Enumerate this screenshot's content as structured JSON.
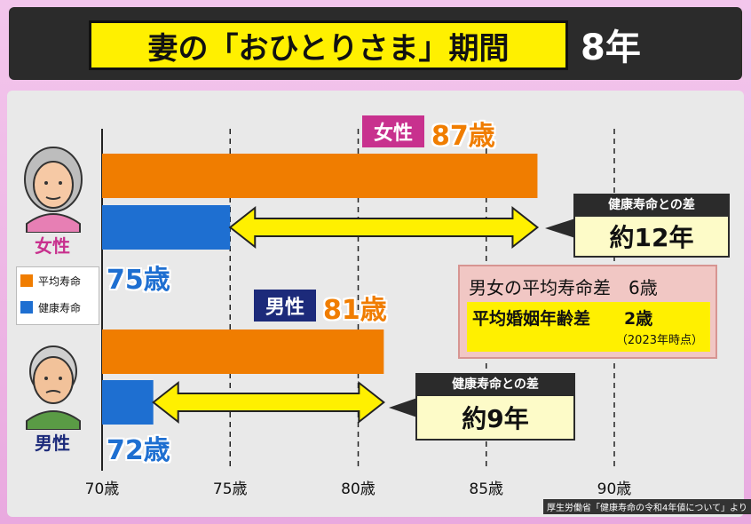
{
  "title": {
    "main": "妻の「おひとりさま」期間",
    "years": "8年"
  },
  "chart_data": {
    "type": "bar",
    "orientation": "horizontal",
    "x_range": [
      70,
      90
    ],
    "x_ticks": [
      "70歳",
      "75歳",
      "80歳",
      "85歳",
      "90歳"
    ],
    "categories": [
      "女性",
      "男性"
    ],
    "series": [
      {
        "name": "平均寿命",
        "values": [
          87,
          81
        ],
        "color": "#f07d00"
      },
      {
        "name": "健康寿命",
        "values": [
          75,
          72
        ],
        "color": "#1e6fd1"
      }
    ],
    "grid": "vertical dashed at 75, 80, 85, 90",
    "legend_position": "left"
  },
  "female": {
    "label": "女性",
    "badge": "女性",
    "avg": "87歳",
    "healthy": "75歳"
  },
  "male": {
    "label": "男性",
    "badge": "男性",
    "avg": "81歳",
    "healthy": "72歳"
  },
  "callouts": {
    "female": {
      "head": "健康寿命との差",
      "body": "約12年"
    },
    "male": {
      "head": "健康寿命との差",
      "body": "約9年"
    }
  },
  "info": {
    "line1": "男女の平均寿命差　6歳",
    "line2": "平均婚姻年齢差　　2歳",
    "line3": "（2023年時点）"
  },
  "legend": {
    "avg": "平均寿命",
    "healthy": "健康寿命"
  },
  "colors": {
    "avg": "#f07d00",
    "healthy": "#1e6fd1",
    "female_badge": "#c8318e",
    "male_badge": "#1c2a7a",
    "arrow": "#fff000"
  },
  "source": "厚生労働省「健康寿命の令和4年値について」より"
}
